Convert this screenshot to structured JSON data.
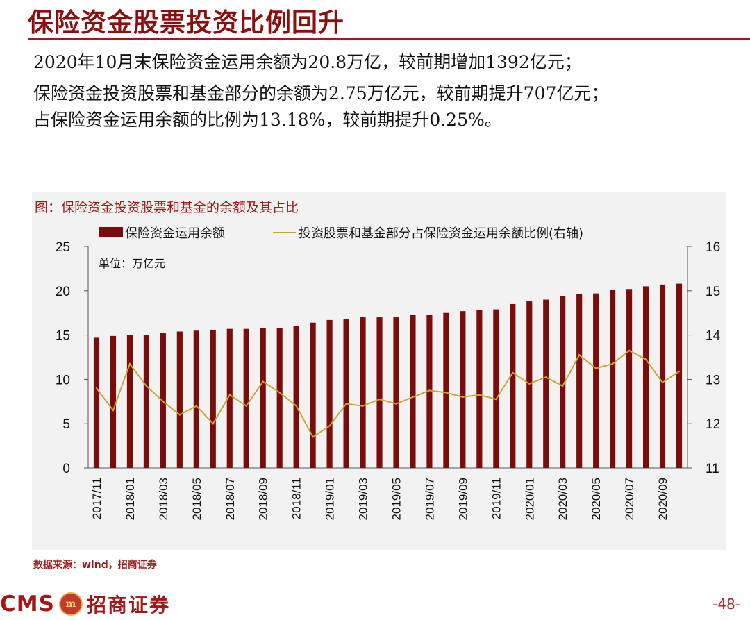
{
  "slide": {
    "title": "保险资金股票投资比例回升",
    "bullets": [
      "2020年10月末保险资金运用余额为20.8万亿，较前期增加1392亿元；",
      "保险资金投资股票和基金部分的余额为2.75万亿元，较前期提升707亿元；",
      "占保险资金运用余额的比例为13.18%，较前期提升0.25%。"
    ],
    "figure_title": "图：保险资金投资股票和基金的余额及其占比",
    "source": "数据来源：wind，招商证券",
    "logo_text": "CMS",
    "logo_cn": "招商证券",
    "page_number": "-48-"
  },
  "colors": {
    "bar": "#7a0c0c",
    "line": "#c9a43a",
    "accent": "#9b1c1c"
  },
  "chart_data": {
    "type": "bar",
    "unit_label": "单位：万亿元",
    "categories": [
      "2017/11",
      "2017/12",
      "2018/01",
      "2018/02",
      "2018/03",
      "2018/04",
      "2018/05",
      "2018/06",
      "2018/07",
      "2018/08",
      "2018/09",
      "2018/10",
      "2018/11",
      "2018/12",
      "2019/01",
      "2019/02",
      "2019/03",
      "2019/04",
      "2019/05",
      "2019/06",
      "2019/07",
      "2019/08",
      "2019/09",
      "2019/10",
      "2019/11",
      "2019/12",
      "2020/01",
      "2020/02",
      "2020/03",
      "2020/04",
      "2020/05",
      "2020/06",
      "2020/07",
      "2020/08",
      "2020/09",
      "2020/10"
    ],
    "x_tick_labels": [
      "2017/11",
      "2018/01",
      "2018/03",
      "2018/05",
      "2018/07",
      "2018/09",
      "2018/11",
      "2019/01",
      "2019/03",
      "2019/05",
      "2019/07",
      "2019/09",
      "2019/11",
      "2020/01",
      "2020/03",
      "2020/05",
      "2020/07",
      "2020/09"
    ],
    "series": [
      {
        "name": "保险资金运用余额",
        "kind": "bar",
        "axis": "left",
        "values": [
          14.7,
          14.9,
          15.0,
          15.0,
          15.2,
          15.4,
          15.5,
          15.6,
          15.7,
          15.7,
          15.8,
          15.8,
          16.0,
          16.4,
          16.7,
          16.8,
          17.0,
          17.0,
          17.0,
          17.3,
          17.3,
          17.5,
          17.7,
          17.8,
          17.9,
          18.5,
          18.8,
          19.0,
          19.4,
          19.6,
          19.7,
          20.1,
          20.2,
          20.5,
          20.7,
          20.8
        ]
      },
      {
        "name": "投资股票和基金部分占保险资金运用余额比例(右轴)",
        "kind": "line",
        "axis": "right",
        "values": [
          12.8,
          12.3,
          13.35,
          12.85,
          12.5,
          12.2,
          12.4,
          12.0,
          12.65,
          12.4,
          12.95,
          12.7,
          12.4,
          11.7,
          11.95,
          12.45,
          12.4,
          12.55,
          12.45,
          12.6,
          12.75,
          12.7,
          12.6,
          12.65,
          12.55,
          13.15,
          12.9,
          13.05,
          12.85,
          13.55,
          13.25,
          13.35,
          13.65,
          13.45,
          12.93,
          13.18
        ]
      }
    ],
    "y_left": {
      "min": 0,
      "max": 25,
      "ticks": [
        0,
        5,
        10,
        15,
        20,
        25
      ]
    },
    "y_right": {
      "min": 11,
      "max": 16,
      "ticks": [
        11,
        12,
        13,
        14,
        15,
        16
      ]
    }
  }
}
